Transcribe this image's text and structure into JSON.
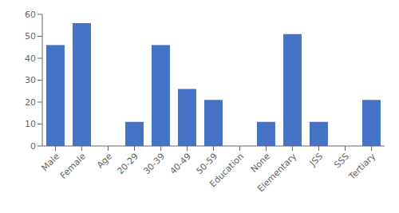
{
  "chart_data": {
    "type": "bar",
    "categories": [
      "Male",
      "Female",
      "Age",
      "20-29",
      "30-39",
      "40-49",
      "50-59",
      "Education",
      "None",
      "Elementary",
      "JSS",
      "SSS",
      "Tertiary"
    ],
    "values": [
      46,
      56,
      null,
      11,
      46,
      26,
      21,
      null,
      11,
      51,
      11,
      0,
      21
    ],
    "color": "#4472C4",
    "ylim": [
      0,
      60
    ],
    "yticks": [
      0,
      10,
      20,
      30,
      40,
      50,
      60
    ],
    "grid": false
  }
}
